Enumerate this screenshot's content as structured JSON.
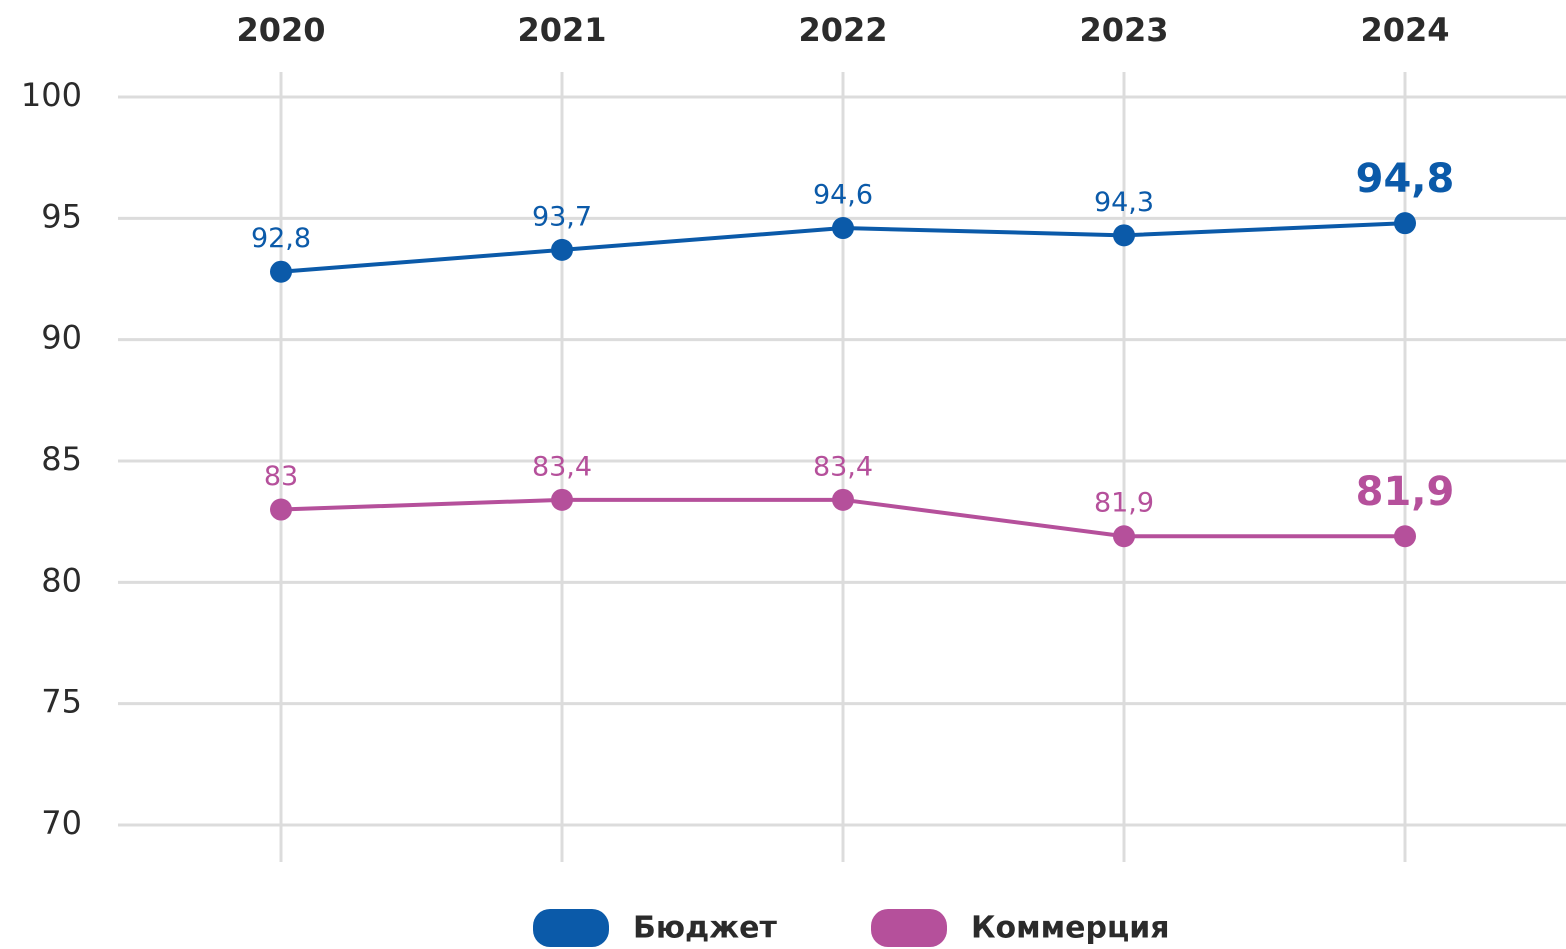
{
  "chart_data": {
    "type": "line",
    "categories": [
      "2020",
      "2021",
      "2022",
      "2023",
      "2024"
    ],
    "series": [
      {
        "name": "Бюджет",
        "color": "#0b5aa9",
        "values": [
          92.8,
          93.7,
          94.6,
          94.3,
          94.8
        ],
        "value_labels": [
          "92,8",
          "93,7",
          "94,6",
          "94,3",
          "94,8"
        ]
      },
      {
        "name": "Коммерция",
        "color": "#b5509b",
        "values": [
          83,
          83.4,
          83.4,
          81.9,
          81.9
        ],
        "value_labels": [
          "83",
          "83,4",
          "83,4",
          "81,9",
          "81,9"
        ]
      }
    ],
    "ylim": [
      70,
      100
    ],
    "yticks": [
      70,
      75,
      80,
      85,
      90,
      95,
      100
    ],
    "grid": true,
    "legend": "bottom"
  }
}
